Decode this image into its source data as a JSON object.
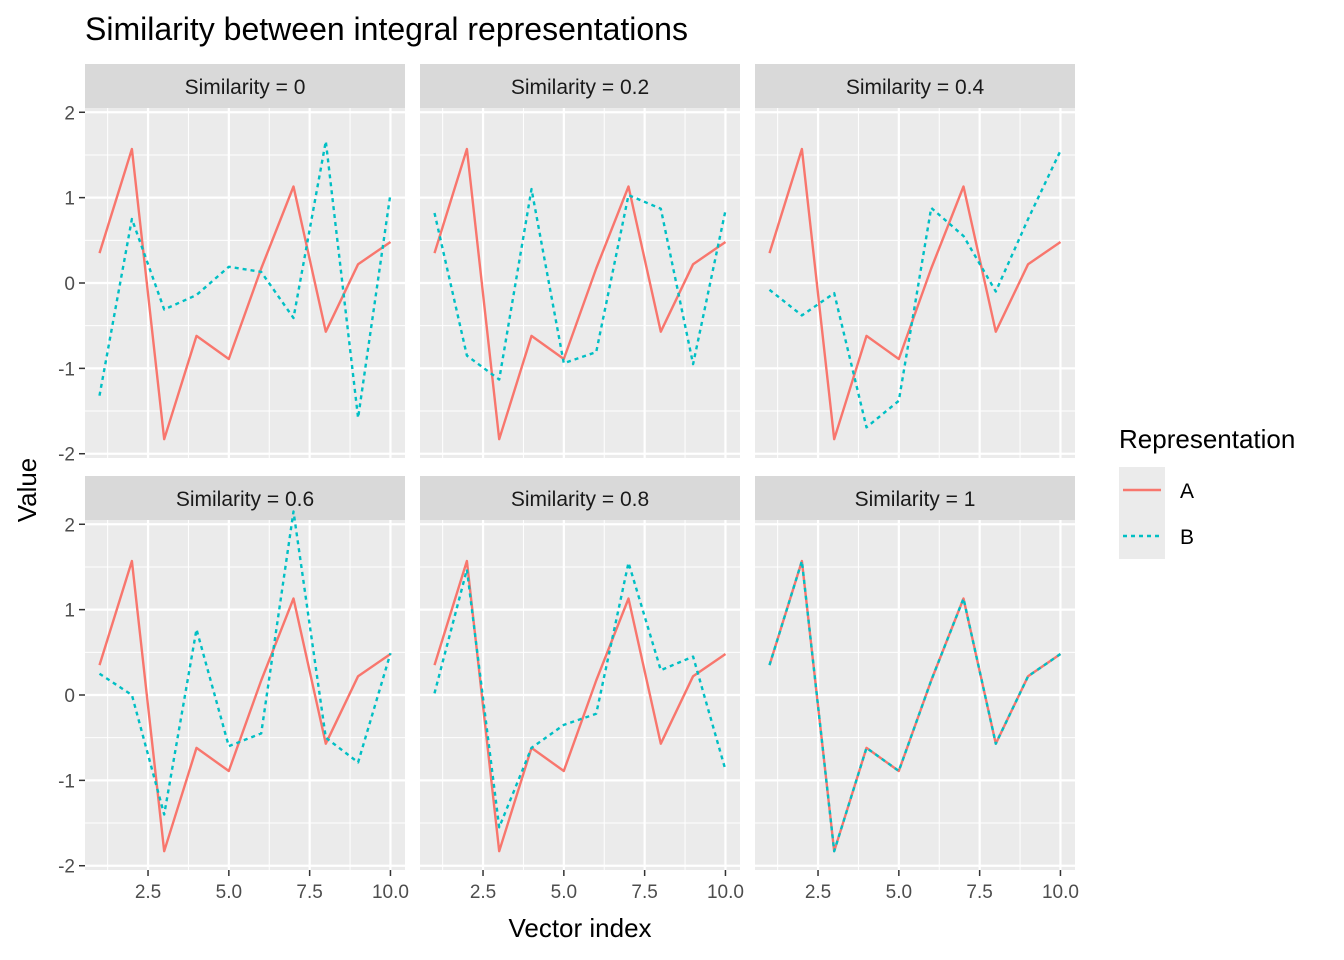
{
  "chart_data": {
    "type": "line",
    "title": "Similarity between integral representations",
    "xlabel": "Vector index",
    "ylabel": "Value",
    "xlim": [
      0.55,
      10.45
    ],
    "ylim": [
      -2.05,
      2.05
    ],
    "x_ticks": [
      2.5,
      5.0,
      7.5,
      10.0
    ],
    "x_tick_labels": [
      "2.5",
      "5.0",
      "7.5",
      "10.0"
    ],
    "y_ticks": [
      -2,
      -1,
      0,
      1,
      2
    ],
    "y_tick_labels": [
      "-2",
      "-1",
      "0",
      "1",
      "2"
    ],
    "grid": true,
    "legend": {
      "title": "Representation",
      "position": "right",
      "entries": [
        {
          "label": "A",
          "color": "#F8766D",
          "linetype": "solid"
        },
        {
          "label": "B",
          "color": "#00BFC4",
          "linetype": "dotted"
        }
      ]
    },
    "x": [
      1,
      2,
      3,
      4,
      5,
      6,
      7,
      8,
      9,
      10
    ],
    "facets": [
      {
        "label": "Similarity = 0",
        "series": [
          {
            "name": "A",
            "values": [
              0.35,
              1.57,
              -1.83,
              -0.62,
              -0.89,
              0.17,
              1.13,
              -0.57,
              0.22,
              0.48
            ]
          },
          {
            "name": "B",
            "values": [
              -1.32,
              0.75,
              -0.31,
              -0.14,
              0.19,
              0.13,
              -0.41,
              1.66,
              -1.58,
              1.05
            ]
          }
        ]
      },
      {
        "label": "Similarity = 0.2",
        "series": [
          {
            "name": "A",
            "values": [
              0.35,
              1.57,
              -1.83,
              -0.62,
              -0.89,
              0.17,
              1.13,
              -0.57,
              0.22,
              0.48
            ]
          },
          {
            "name": "B",
            "values": [
              0.82,
              -0.85,
              -1.13,
              1.1,
              -0.94,
              -0.81,
              1.03,
              0.87,
              -0.95,
              0.85
            ]
          }
        ]
      },
      {
        "label": "Similarity = 0.4",
        "series": [
          {
            "name": "A",
            "values": [
              0.35,
              1.57,
              -1.83,
              -0.62,
              -0.89,
              0.17,
              1.13,
              -0.57,
              0.22,
              0.48
            ]
          },
          {
            "name": "B",
            "values": [
              -0.08,
              -0.38,
              -0.12,
              -1.69,
              -1.38,
              0.88,
              0.55,
              -0.1,
              0.75,
              1.55
            ]
          }
        ]
      },
      {
        "label": "Similarity = 0.6",
        "series": [
          {
            "name": "A",
            "values": [
              0.35,
              1.57,
              -1.83,
              -0.62,
              -0.89,
              0.17,
              1.13,
              -0.57,
              0.22,
              0.48
            ]
          },
          {
            "name": "B",
            "values": [
              0.25,
              0.0,
              -1.4,
              0.77,
              -0.6,
              -0.45,
              2.15,
              -0.5,
              -0.79,
              0.49
            ]
          }
        ]
      },
      {
        "label": "Similarity = 0.8",
        "series": [
          {
            "name": "A",
            "values": [
              0.35,
              1.57,
              -1.83,
              -0.62,
              -0.89,
              0.17,
              1.13,
              -0.57,
              0.22,
              0.48
            ]
          },
          {
            "name": "B",
            "values": [
              0.02,
              1.47,
              -1.55,
              -0.62,
              -0.35,
              -0.22,
              1.55,
              0.29,
              0.45,
              -0.88
            ]
          }
        ]
      },
      {
        "label": "Similarity = 1",
        "series": [
          {
            "name": "A",
            "values": [
              0.35,
              1.57,
              -1.83,
              -0.62,
              -0.89,
              0.17,
              1.13,
              -0.57,
              0.22,
              0.48
            ]
          },
          {
            "name": "B",
            "values": [
              0.35,
              1.57,
              -1.83,
              -0.62,
              -0.89,
              0.17,
              1.13,
              -0.57,
              0.22,
              0.48
            ]
          }
        ]
      }
    ]
  }
}
